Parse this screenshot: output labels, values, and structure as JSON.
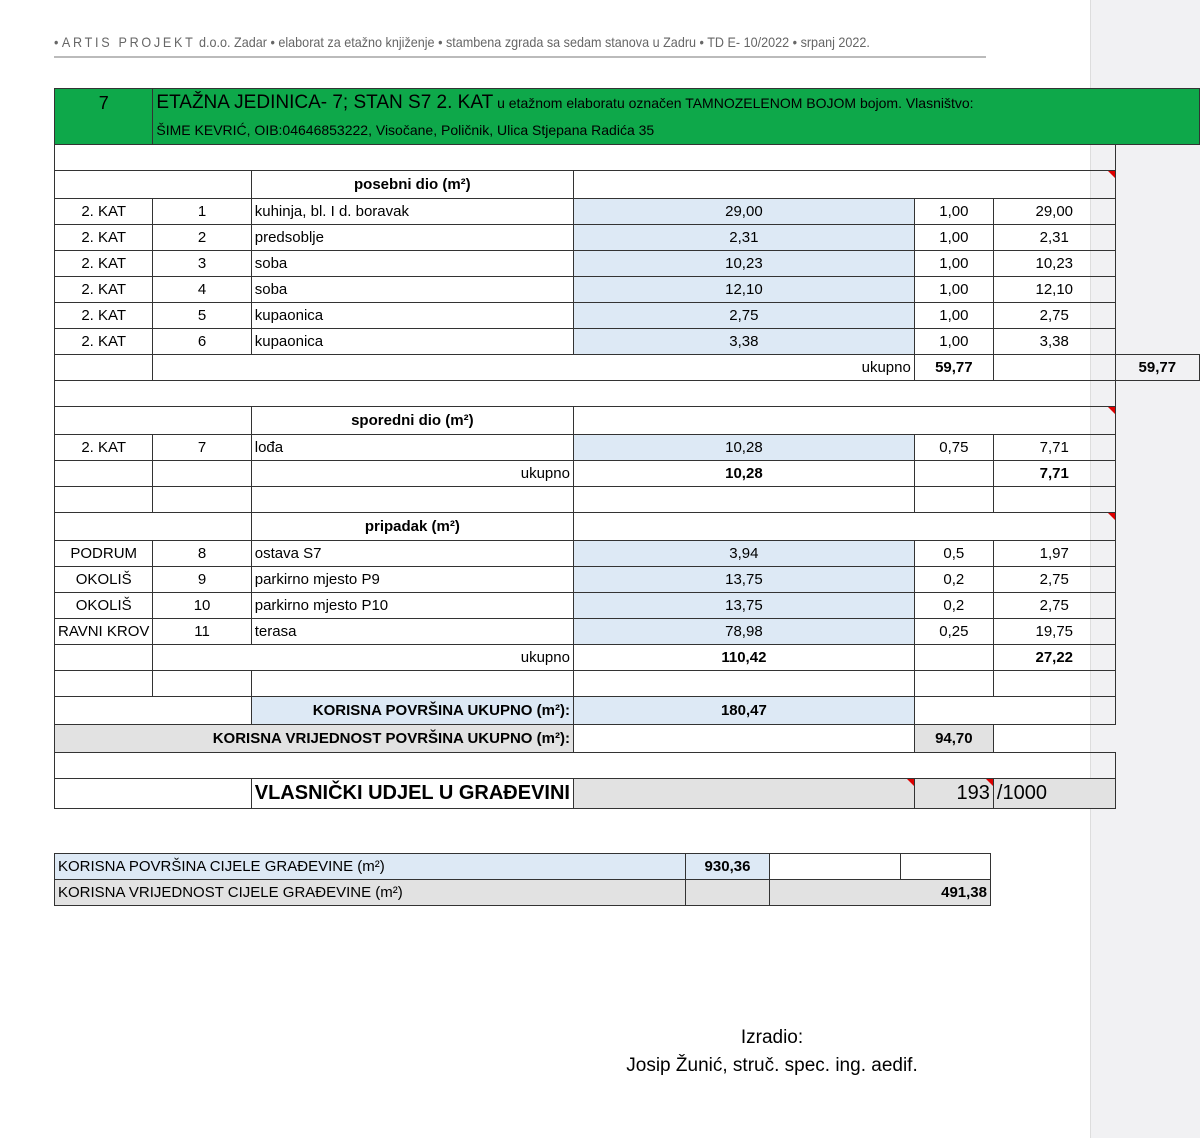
{
  "header": {
    "brand": "ARTIS PROJEKT",
    "text": "d.o.o. Zadar • elaborat za etažno knjiženje • stambena zgrada sa sedam stanova u Zadru • TD E- 10/2022 • srpanj 2022."
  },
  "unit": {
    "number": "7",
    "title": "ETAŽNA JEDINICA- 7; STAN S7 2. KAT",
    "title_rest": "u etažnom elaboratu označen TAMNOZELENOM BOJOM bojom. Vlasništvo:",
    "owner": "ŠIME KEVRIĆ, OIB:04646853222, Visočane, Poličnik, Ulica Stjepana Radića 35"
  },
  "colors": {
    "green": "#0ea84a",
    "blue": "#dde9f5",
    "gray": "#e2e2e2"
  },
  "posebni": {
    "heading": "posebni dio (m²)",
    "rows": [
      [
        "2. KAT",
        "1",
        "kuhinja, bl. I d. boravak",
        "29,00",
        "1,00",
        "29,00"
      ],
      [
        "2. KAT",
        "2",
        "predsoblje",
        "2,31",
        "1,00",
        "2,31"
      ],
      [
        "2. KAT",
        "3",
        "soba",
        "10,23",
        "1,00",
        "10,23"
      ],
      [
        "2. KAT",
        "4",
        "soba",
        "12,10",
        "1,00",
        "12,10"
      ],
      [
        "2. KAT",
        "5",
        "kupaonica",
        "2,75",
        "1,00",
        "2,75"
      ],
      [
        "2. KAT",
        "6",
        "kupaonica",
        "3,38",
        "1,00",
        "3,38"
      ]
    ],
    "total_label": "ukupno",
    "total_area": "59,77",
    "total_value": "59,77"
  },
  "sporedni": {
    "heading": "sporedni dio (m²)",
    "rows": [
      [
        "2. KAT",
        "7",
        "lođa",
        "10,28",
        "0,75",
        "7,71"
      ]
    ],
    "total_label": "ukupno",
    "total_area": "10,28",
    "total_value": "7,71"
  },
  "pripadak": {
    "heading": "pripadak (m²)",
    "rows": [
      [
        "PODRUM",
        "8",
        "ostava S7",
        "3,94",
        "0,5",
        "1,97"
      ],
      [
        "OKOLIŠ",
        "9",
        "parkirno mjesto P9",
        "13,75",
        "0,2",
        "2,75"
      ],
      [
        "OKOLIŠ",
        "10",
        "parkirno mjesto P10",
        "13,75",
        "0,2",
        "2,75"
      ],
      [
        "RAVNI KROV",
        "11",
        "terasa",
        "78,98",
        "0,25",
        "19,75"
      ]
    ],
    "total_label": "ukupno",
    "total_area": "110,42",
    "total_value": "27,22"
  },
  "summary": {
    "korisna_label": "KORISNA POVRŠINA UKUPNO (m²):",
    "korisna_value": "180,47",
    "vrijednost_label": "KORISNA VRIJEDNOST POVRŠINA UKUPNO (m²):",
    "vrijednost_value": "94,70",
    "udjel_label": "VLASNIČKI UDJEL U GRAĐEVINI",
    "udjel_num": "193",
    "udjel_den": "/1000"
  },
  "building": {
    "povrsina_label": "KORISNA POVRŠINA CIJELE GRAĐEVINE (m²)",
    "povrsina_value": "930,36",
    "vrijednost_label": "KORISNA VRIJEDNOST CIJELE GRAĐEVINE (m²)",
    "vrijednost_value": "491,38"
  },
  "signature": {
    "label": "Izradio:",
    "name": "Josip Žunić, struč. spec. ing. aedif."
  }
}
